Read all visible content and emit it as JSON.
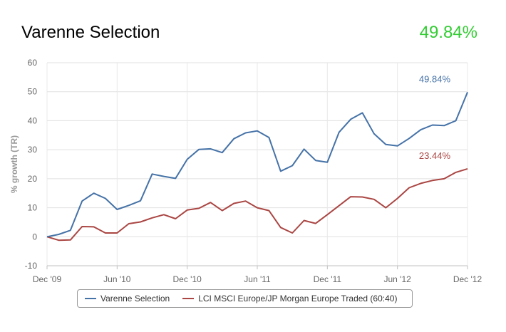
{
  "header": {
    "fund_name": "Varenne Selection",
    "performance": "49.84%",
    "performance_color": "#33cc33"
  },
  "chart_data": {
    "type": "line",
    "ylabel": "% growth (TR)",
    "ylim": [
      -10,
      60
    ],
    "yticks": [
      -10,
      0,
      10,
      20,
      30,
      40,
      50,
      60
    ],
    "x_tick_labels": [
      "Dec '09",
      "Jun '10",
      "Dec '10",
      "Jun '11",
      "Dec '11",
      "Jun '12",
      "Dec '12"
    ],
    "x_tick_index": [
      0,
      6,
      12,
      18,
      24,
      30,
      36
    ],
    "grid": true,
    "x": [
      "Dec '09",
      "Jan '10",
      "Feb '10",
      "Mar '10",
      "Apr '10",
      "May '10",
      "Jun '10",
      "Jul '10",
      "Aug '10",
      "Sep '10",
      "Oct '10",
      "Nov '10",
      "Dec '10",
      "Jan '11",
      "Feb '11",
      "Mar '11",
      "Apr '11",
      "May '11",
      "Jun '11",
      "Jul '11",
      "Aug '11",
      "Sep '11",
      "Oct '11",
      "Nov '11",
      "Dec '11",
      "Jan '12",
      "Feb '12",
      "Mar '12",
      "Apr '12",
      "May '12",
      "Jun '12",
      "Jul '12",
      "Aug '12",
      "Sep '12",
      "Oct '12",
      "Nov '12",
      "Dec '12"
    ],
    "series": [
      {
        "name": "Varenne Selection",
        "color": "#4572a7",
        "end_label": "49.84%",
        "values": [
          0,
          0.8,
          2.2,
          12.3,
          15.0,
          13.2,
          9.4,
          10.8,
          12.4,
          21.6,
          20.8,
          20.1,
          26.7,
          30.1,
          30.3,
          29.0,
          33.8,
          35.8,
          36.5,
          34.2,
          22.6,
          24.5,
          30.2,
          26.3,
          25.7,
          36.0,
          40.5,
          42.7,
          35.5,
          31.8,
          31.3,
          33.9,
          36.9,
          38.5,
          38.3,
          40.0,
          49.84
        ]
      },
      {
        "name": "LCI MSCI Europe/JP Morgan Europe Traded (60:40)",
        "color": "#aa4643",
        "end_label": "23.44%",
        "values": [
          0,
          -1.2,
          -1.1,
          3.5,
          3.4,
          1.3,
          1.3,
          4.5,
          5.1,
          6.5,
          7.6,
          6.2,
          9.2,
          9.8,
          11.8,
          9.0,
          11.5,
          12.3,
          10.0,
          9.0,
          3.2,
          1.3,
          5.6,
          4.6,
          7.6,
          10.7,
          13.8,
          13.7,
          12.9,
          10.0,
          13.2,
          16.9,
          18.4,
          19.4,
          20.0,
          22.2,
          23.44
        ]
      }
    ]
  }
}
